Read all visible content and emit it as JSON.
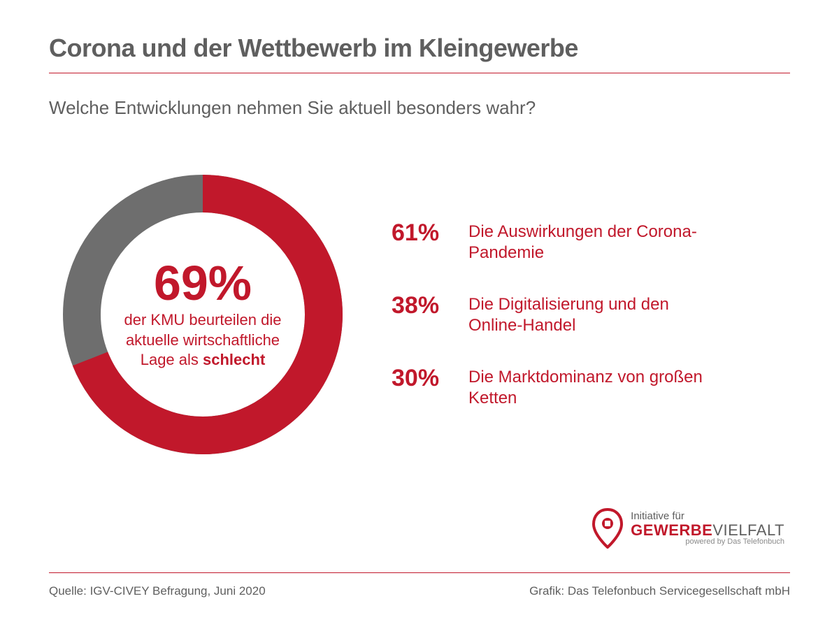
{
  "colors": {
    "accent": "#c1182b",
    "gray": "#6e6e6e",
    "text": "#5f5f5f",
    "rule": "#c1182b",
    "bg": "#ffffff"
  },
  "title": "Corona und der Wettbewerb im Kleingewerbe",
  "subtitle": "Welche Entwicklungen nehmen Sie aktuell besonders wahr?",
  "donut": {
    "type": "donut",
    "value_pct": 69,
    "remainder_pct": 31,
    "center_value": "69%",
    "center_caption_pre": "der KMU beurteilen die aktuelle wirtschaftliche Lage als ",
    "center_caption_bold": "schlecht",
    "ring_color_main": "#c1182b",
    "ring_color_rest": "#6e6e6e",
    "inner_bg": "#ffffff",
    "stroke_width": 54,
    "outer_radius": 200,
    "start_angle_deg": -90
  },
  "stats": [
    {
      "pct": "61%",
      "label": "Die Auswirkungen der Corona-Pandemie"
    },
    {
      "pct": "38%",
      "label": "Die Digitalisierung und den Online-Handel"
    },
    {
      "pct": "30%",
      "label": "Die Marktdominanz von großen Ketten"
    }
  ],
  "logo": {
    "line1": "Initiative für",
    "line2_bold": "GEWERBE",
    "line2_thin": "VIELFALT",
    "line3": "powered by Das Telefonbuch",
    "pin_color": "#c1182b"
  },
  "footer": {
    "source": "Quelle: IGV-CIVEY Befragung, Juni 2020",
    "graphic": "Grafik: Das Telefonbuch Servicegesellschaft mbH"
  }
}
